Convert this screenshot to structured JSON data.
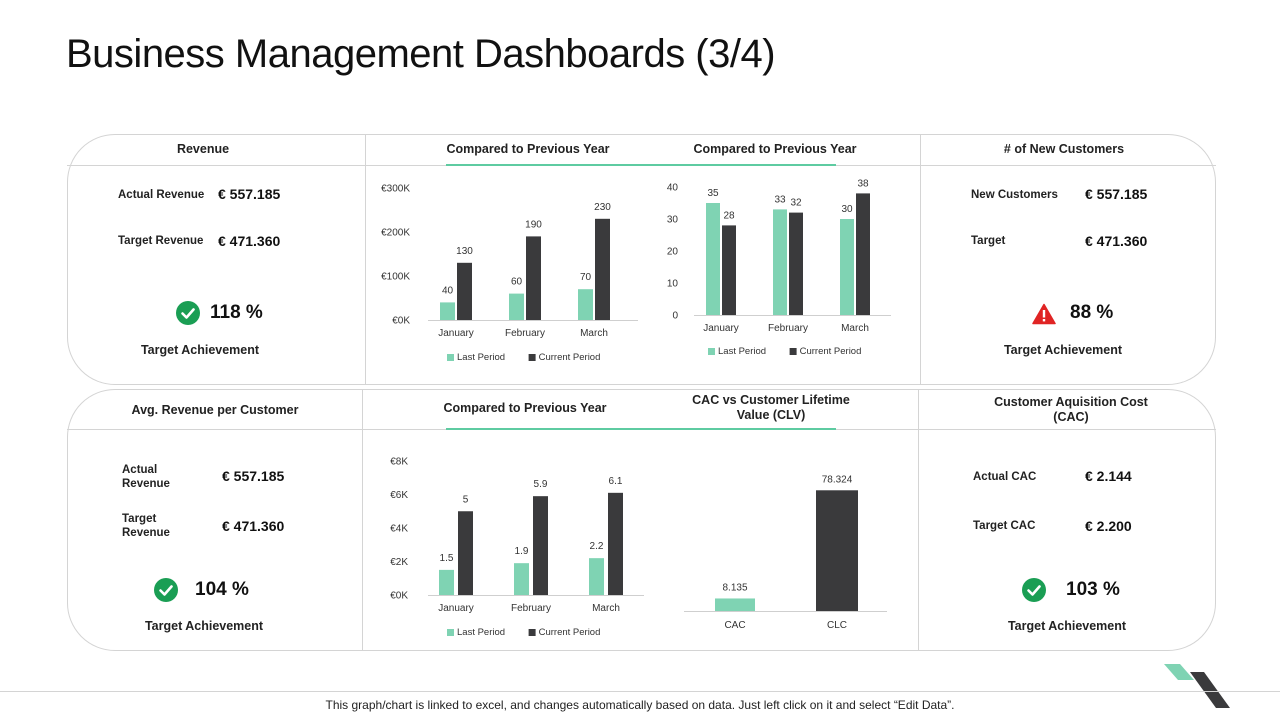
{
  "page": {
    "title": "Business Management Dashboards (3/4)",
    "footer": "This graph/chart is linked to excel, and changes automatically based on data. Just left click on it and select “Edit Data”."
  },
  "colors": {
    "accent": "#5ecba1",
    "light_bar": "#7fd3b3",
    "dark_bar": "#3a3a3c",
    "ok": "#1a9e54",
    "warn": "#e02424"
  },
  "icons": {
    "ok": "checkmark-circle-icon",
    "warn": "warning-triangle-icon"
  },
  "revenue": {
    "header": "Revenue",
    "actual_label": "Actual Revenue",
    "actual_value": "€ 557.185",
    "target_label": "Target Revenue",
    "target_value": "€ 471.360",
    "percent": "118 %",
    "achievement": "Target Achievement"
  },
  "rev_chart": {
    "header": "Compared to Previous Year"
  },
  "count_chart": {
    "header": "Compared to Previous Year"
  },
  "new_customers": {
    "header": "# of New Customers",
    "new_label": "New Customers",
    "new_value": "€ 557.185",
    "target_label": "Target",
    "target_value": "€ 471.360",
    "percent": "88 %",
    "achievement": "Target Achievement"
  },
  "avg_revenue": {
    "header": "Avg. Revenue per Customer",
    "actual_label": "Actual Revenue",
    "actual_value": "€ 557.185",
    "target_label": "Target Revenue",
    "target_value": "€ 471.360",
    "percent": "104 %",
    "achievement": "Target Achievement"
  },
  "avg_chart": {
    "header": "Compared to Previous Year"
  },
  "clv_chart": {
    "header": "CAC vs Customer Lifetime Value (CLV)"
  },
  "cac": {
    "header": "Customer Aquisition Cost (CAC)",
    "actual_label": "Actual CAC",
    "actual_value": "€ 2.144",
    "target_label": "Target CAC",
    "target_value": "€ 2.200",
    "percent": "103 %",
    "achievement": "Target Achievement"
  },
  "chart_data": [
    {
      "id": "rev",
      "type": "bar",
      "categories": [
        "January",
        "February",
        "March"
      ],
      "series": [
        {
          "name": "Last Period",
          "values": [
            40,
            60,
            70
          ]
        },
        {
          "name": "Current Period",
          "values": [
            130,
            190,
            230
          ]
        }
      ],
      "data_labels": [
        [
          "40",
          "60",
          "70"
        ],
        [
          "130",
          "190",
          "230"
        ]
      ],
      "ylim": [
        0,
        300
      ],
      "yticks": [
        0,
        100,
        200,
        300
      ],
      "ytick_labels": [
        "€0K",
        "€100K",
        "€200K",
        "€300K"
      ],
      "xlabel": "",
      "ylabel": "",
      "legend": "bottom"
    },
    {
      "id": "cnt",
      "type": "bar",
      "categories": [
        "January",
        "February",
        "March"
      ],
      "series": [
        {
          "name": "Last Period",
          "values": [
            35,
            33,
            30
          ]
        },
        {
          "name": "Current Period",
          "values": [
            28,
            32,
            38
          ]
        }
      ],
      "data_labels": [
        [
          "35",
          "33",
          "30"
        ],
        [
          "28",
          "32",
          "38"
        ]
      ],
      "ylim": [
        0,
        40
      ],
      "yticks": [
        0,
        10,
        20,
        30,
        40
      ],
      "ytick_labels": [
        "0",
        "10",
        "20",
        "30",
        "40"
      ],
      "xlabel": "",
      "ylabel": "",
      "legend": "bottom"
    },
    {
      "id": "avg",
      "type": "bar",
      "categories": [
        "January",
        "February",
        "March"
      ],
      "series": [
        {
          "name": "Last Period",
          "values": [
            1.5,
            1.9,
            2.2
          ]
        },
        {
          "name": "Current Period",
          "values": [
            5,
            5.9,
            6.1
          ]
        }
      ],
      "data_labels": [
        [
          "1.5",
          "1.9",
          "2.2"
        ],
        [
          "5",
          "5.9",
          "6.1"
        ]
      ],
      "ylim": [
        0,
        8
      ],
      "yticks": [
        0,
        2,
        4,
        6,
        8
      ],
      "ytick_labels": [
        "€0K",
        "€2K",
        "€4K",
        "€6K",
        "€8K"
      ],
      "xlabel": "",
      "ylabel": "",
      "legend": "bottom"
    },
    {
      "id": "clv",
      "type": "bar",
      "categories": [
        "CAC",
        "CLC"
      ],
      "values": [
        8.135,
        78.324
      ],
      "data_labels": [
        "8.135",
        "78.324"
      ],
      "ylim": [
        0,
        85
      ],
      "xlabel": "",
      "ylabel": ""
    }
  ]
}
